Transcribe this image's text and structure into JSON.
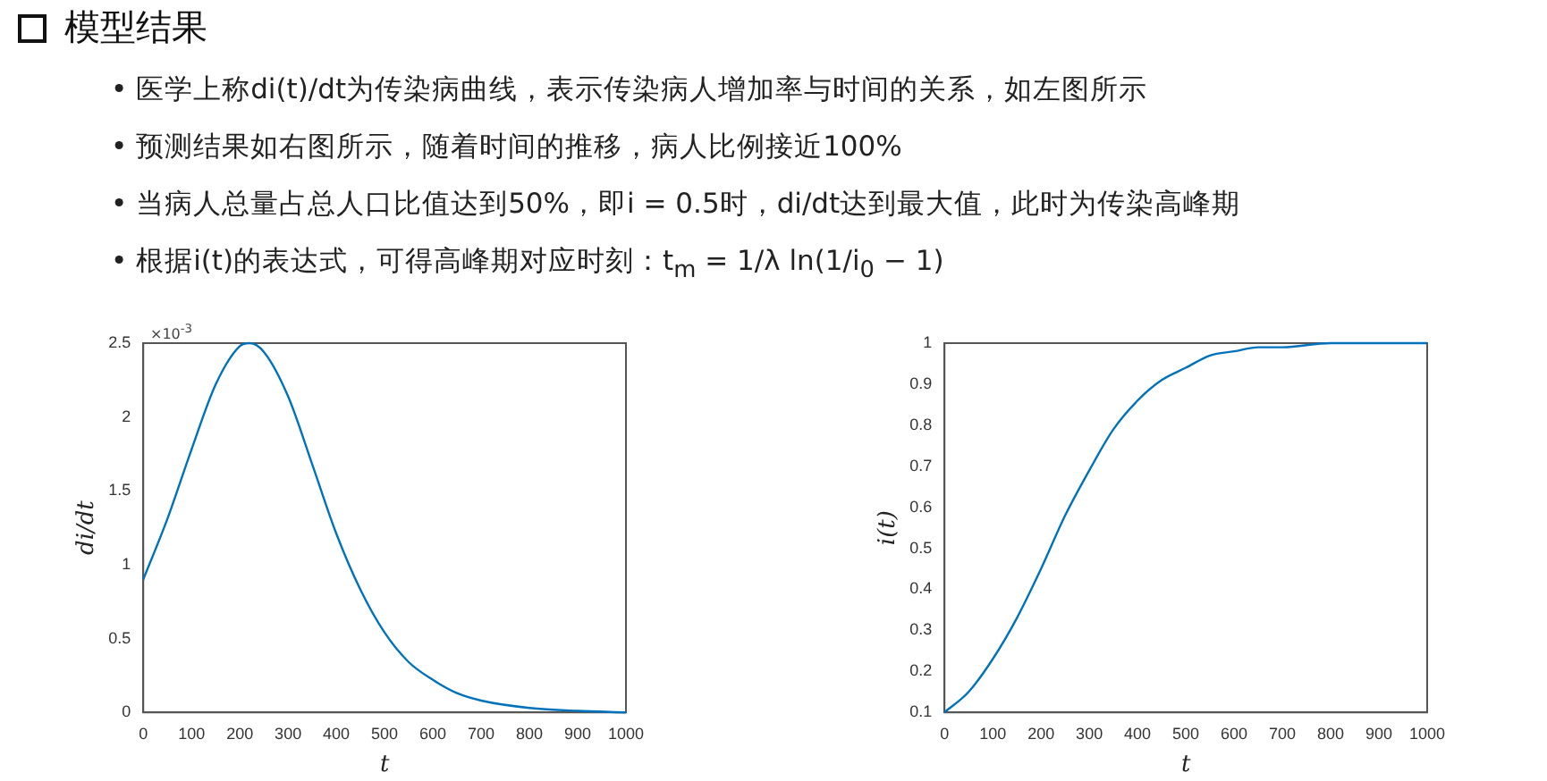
{
  "chart_data": [
    {
      "type": "other",
      "title": "模型结果",
      "annotations": [
        "• 医学上称di(t)/dt为传染病曲线，表示传染病人增加率与时间的关系，如左图所示",
        "• 预测结果如右图所示，随着时间的推移，病人比例接近100%",
        "• 当病人总量占总人口比值达到50%，即i = 0.5时，di/dt达到最大值，此时为传染高峰期",
        "• 根据i(t)的表达式，可得高峰期对应时刻：t$_{m}$ = 1/λ ln(1/i$_{0}$ − 1)"
      ]
    },
    {
      "type": "line",
      "xlabel": "t",
      "ylabel": "di/dt",
      "annotations": [
        "×10$^{-3}$"
      ],
      "x": [
        0,
        50,
        100,
        150,
        200,
        220,
        250,
        300,
        350,
        400,
        450,
        500,
        550,
        600,
        650,
        700,
        800,
        900,
        1000
      ],
      "series": [
        {
          "color": "#0072bd",
          "values": [
            0.9,
            1.31,
            1.78,
            2.22,
            2.48,
            2.5,
            2.44,
            2.14,
            1.68,
            1.21,
            0.83,
            0.54,
            0.34,
            0.22,
            0.13,
            0.08,
            0.03,
            0.01,
            0.0
          ]
        }
      ],
      "xlim": [
        0,
        1000
      ],
      "xticks": [
        0,
        100,
        200,
        300,
        400,
        500,
        600,
        700,
        800,
        900,
        1000
      ],
      "ylim": [
        0,
        2.5
      ],
      "yticks": [
        0,
        0.5,
        1,
        1.5,
        2,
        2.5
      ],
      "grid": false,
      "legend": false
    },
    {
      "type": "line",
      "xlabel": "t",
      "ylabel": "i(t)",
      "x": [
        0,
        50,
        100,
        150,
        200,
        250,
        300,
        350,
        400,
        450,
        500,
        550,
        600,
        650,
        700,
        800,
        900,
        1000
      ],
      "series": [
        {
          "color": "#0072bd",
          "values": [
            0.1,
            0.15,
            0.23,
            0.33,
            0.45,
            0.58,
            0.69,
            0.79,
            0.86,
            0.91,
            0.94,
            0.97,
            0.98,
            0.99,
            0.99,
            1.0,
            1.0,
            1.0
          ]
        }
      ],
      "xlim": [
        0,
        1000
      ],
      "xticks": [
        0,
        100,
        200,
        300,
        400,
        500,
        600,
        700,
        800,
        900,
        1000
      ],
      "ylim": [
        0.1,
        1
      ],
      "yticks": [
        0.1,
        0.2,
        0.3,
        0.4,
        0.5,
        0.6,
        0.7,
        0.8,
        0.9,
        1
      ],
      "grid": false,
      "legend": false
    }
  ]
}
